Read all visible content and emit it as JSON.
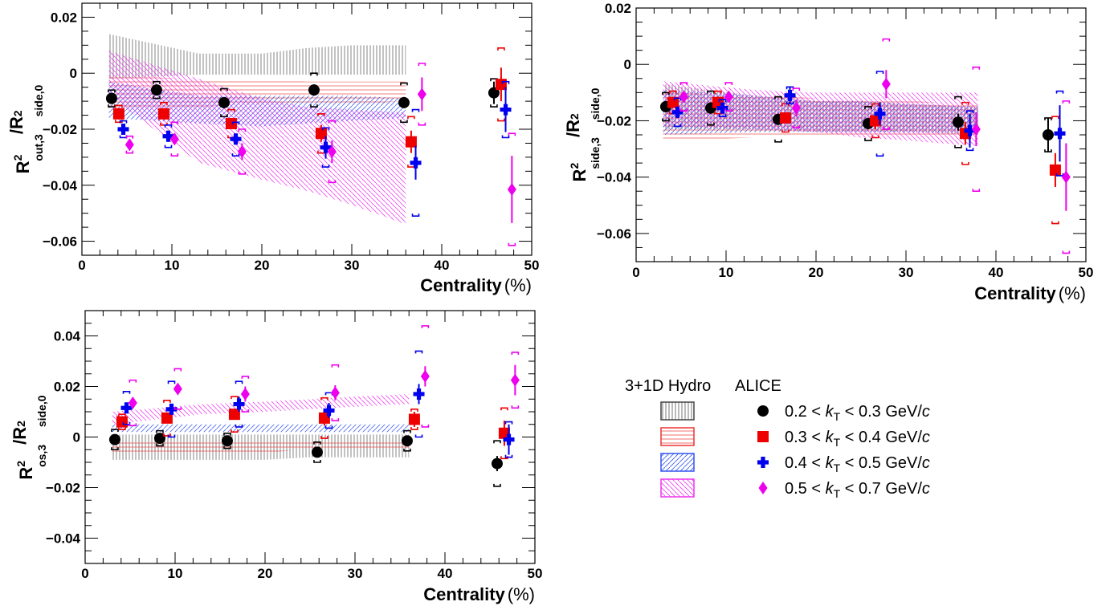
{
  "chart_data": [
    {
      "type": "scatter",
      "ylabel": "R²out,3/R²side,0",
      "xlabel": "Centrality (%)",
      "xlim": [
        0,
        50
      ],
      "ylim": [
        -0.065,
        0.025
      ],
      "xticks": [
        "0",
        "10",
        "20",
        "30",
        "40",
        "50"
      ],
      "yticks": [
        "0.02",
        "0",
        "−0.02",
        "−0.04",
        "−0.06"
      ],
      "series": [
        {
          "name": "0.2 < kT < 0.3 GeV/c",
          "x": [
            3.3,
            8.3,
            15.8,
            25.8,
            35.8,
            45.8
          ],
          "y": [
            -0.009,
            -0.006,
            -0.0105,
            -0.006,
            -0.0105,
            -0.007
          ],
          "err": [
            0.002,
            0.002,
            0.002,
            0.002,
            0.002,
            0.004
          ],
          "sys": [
            0.003,
            0.003,
            0.005,
            0.006,
            0.007,
            0.005
          ]
        },
        {
          "name": "0.3 < kT < 0.4 GeV/c",
          "x": [
            4.1,
            9.1,
            16.6,
            26.6,
            36.6,
            46.6
          ],
          "y": [
            -0.0145,
            -0.0145,
            -0.018,
            -0.0215,
            -0.0245,
            -0.004
          ],
          "err": [
            0.002,
            0.002,
            0.002,
            0.003,
            0.004,
            0.006
          ],
          "sys": [
            0.003,
            0.004,
            0.005,
            0.007,
            0.009,
            0.013
          ]
        },
        {
          "name": "0.4 < kT < 0.5 GeV/c",
          "x": [
            4.6,
            9.6,
            17.1,
            27.1,
            37.1,
            47.1
          ],
          "y": [
            -0.02,
            -0.0225,
            -0.0235,
            -0.0265,
            -0.032,
            -0.013
          ],
          "err": [
            0.002,
            0.002,
            0.002,
            0.004,
            0.006,
            0.008
          ],
          "sys": [
            0.003,
            0.004,
            0.006,
            0.007,
            0.019,
            0.01
          ]
        },
        {
          "name": "0.5 < kT < 0.7 GeV/c",
          "x": [
            5.3,
            10.3,
            17.8,
            27.8,
            37.8,
            47.8
          ],
          "y": [
            -0.0255,
            -0.0235,
            -0.028,
            -0.028,
            -0.0075,
            -0.0415
          ],
          "err": [
            0.002,
            0.002,
            0.003,
            0.004,
            0.006,
            0.012
          ],
          "sys": [
            0.003,
            0.006,
            0.008,
            0.011,
            0.011,
            0.02
          ]
        }
      ],
      "hydro": {
        "x": [
          3,
          13,
          20,
          25,
          30,
          36
        ],
        "bands": [
          {
            "low": [
              -0.002,
              -0.0005,
              -0.0005,
              -0.0005,
              -0.0005,
              -0.0005
            ],
            "high": [
              0.014,
              0.007,
              0.007,
              0.009,
              0.01,
              0.01
            ]
          },
          {
            "low": [
              -0.013,
              -0.012,
              -0.011,
              -0.011,
              -0.011,
              -0.01
            ],
            "high": [
              -0.001,
              -0.002,
              -0.002,
              -0.003,
              -0.003,
              -0.003
            ]
          },
          {
            "low": [
              -0.016,
              -0.018,
              -0.019,
              -0.018,
              -0.017,
              -0.016
            ],
            "high": [
              -0.003,
              -0.008,
              -0.008,
              -0.008,
              -0.008,
              -0.009
            ]
          },
          {
            "low": [
              -0.008,
              -0.032,
              -0.038,
              -0.042,
              -0.047,
              -0.054
            ],
            "high": [
              0.008,
              -0.002,
              -0.009,
              -0.012,
              -0.013,
              -0.014
            ]
          }
        ]
      }
    },
    {
      "type": "scatter",
      "ylabel": "R²side,3/R²side,0",
      "xlabel": "Centrality (%)",
      "xlim": [
        0,
        50
      ],
      "ylim": [
        -0.07,
        0.02
      ],
      "xticks": [
        "0",
        "10",
        "20",
        "30",
        "40",
        "50"
      ],
      "yticks": [
        "0.02",
        "0",
        "−0.02",
        "−0.04",
        "−0.06"
      ],
      "series": [
        {
          "name": "0.2 < kT < 0.3 GeV/c",
          "x": [
            3.3,
            8.3,
            15.8,
            25.8,
            35.8,
            45.8
          ],
          "y": [
            -0.015,
            -0.0155,
            -0.0195,
            -0.021,
            -0.0205,
            -0.025
          ],
          "err": [
            0.002,
            0.002,
            0.002,
            0.002,
            0.003,
            0.006
          ],
          "sys": [
            0.005,
            0.006,
            0.008,
            0.006,
            0.009,
            0.006
          ]
        },
        {
          "name": "0.3 < kT < 0.4 GeV/c",
          "x": [
            4.1,
            9.1,
            16.6,
            26.6,
            36.6,
            46.6
          ],
          "y": [
            -0.0135,
            -0.0135,
            -0.019,
            -0.02,
            -0.0245,
            -0.0375
          ],
          "err": [
            0.002,
            0.002,
            0.002,
            0.003,
            0.004,
            0.006
          ],
          "sys": [
            0.004,
            0.004,
            0.005,
            0.006,
            0.011,
            0.019
          ]
        },
        {
          "name": "0.4 < kT < 0.5 GeV/c",
          "x": [
            4.6,
            9.6,
            17.1,
            27.1,
            37.1,
            47.1
          ],
          "y": [
            -0.017,
            -0.0155,
            -0.011,
            -0.0175,
            -0.0235,
            -0.0245
          ],
          "err": [
            0.002,
            0.002,
            0.003,
            0.004,
            0.006,
            0.01
          ],
          "sys": [
            0.005,
            0.003,
            0.003,
            0.015,
            0.007,
            0.015
          ]
        },
        {
          "name": "0.5 < kT < 0.7 GeV/c",
          "x": [
            5.3,
            10.3,
            17.8,
            27.8,
            37.8,
            47.8
          ],
          "y": [
            -0.0115,
            -0.0115,
            -0.0155,
            -0.007,
            -0.023,
            -0.04
          ],
          "err": [
            0.002,
            0.002,
            0.003,
            0.005,
            0.006,
            0.012
          ],
          "sys": [
            0.005,
            0.005,
            0.007,
            0.016,
            0.022,
            0.027
          ]
        }
      ],
      "hydro": {
        "x": [
          3,
          13,
          20,
          25,
          30,
          38
        ],
        "bands": [
          {
            "low": [
              -0.023,
              -0.023,
              -0.024,
              -0.024,
              -0.024,
              -0.025
            ],
            "high": [
              -0.007,
              -0.011,
              -0.013,
              -0.013,
              -0.014,
              -0.015
            ]
          },
          {
            "low": [
              -0.027,
              -0.026,
              -0.025,
              -0.025,
              -0.025,
              -0.025
            ],
            "high": [
              -0.01,
              -0.011,
              -0.012,
              -0.013,
              -0.013,
              -0.014
            ]
          },
          {
            "low": [
              -0.025,
              -0.024,
              -0.024,
              -0.024,
              -0.024,
              -0.024
            ],
            "high": [
              -0.009,
              -0.011,
              -0.013,
              -0.013,
              -0.014,
              -0.015
            ]
          },
          {
            "low": [
              -0.022,
              -0.023,
              -0.024,
              -0.026,
              -0.027,
              -0.029
            ],
            "high": [
              -0.006,
              -0.009,
              -0.01,
              -0.01,
              -0.01,
              -0.01
            ]
          }
        ]
      }
    },
    {
      "type": "scatter",
      "ylabel": "R²os,3/R²side,0",
      "xlabel": "Centrality (%)",
      "xlim": [
        0,
        50
      ],
      "ylim": [
        -0.05,
        0.05
      ],
      "xticks": [
        "0",
        "10",
        "20",
        "30",
        "40",
        "50"
      ],
      "yticks": [
        "0.04",
        "0.02",
        "0",
        "−0.02",
        "−0.04"
      ],
      "series": [
        {
          "name": "0.2 < kT < 0.3 GeV/c",
          "x": [
            3.3,
            8.3,
            15.8,
            25.8,
            35.8,
            45.8
          ],
          "y": [
            -0.001,
            -0.0005,
            -0.0015,
            -0.006,
            -0.0015,
            -0.0105
          ],
          "err": [
            0.0015,
            0.0015,
            0.0015,
            0.002,
            0.002,
            0.003
          ],
          "sys": [
            0.004,
            0.003,
            0.003,
            0.004,
            0.004,
            0.009
          ]
        },
        {
          "name": "0.3 < kT < 0.4 GeV/c",
          "x": [
            4.1,
            9.1,
            16.6,
            26.6,
            36.6,
            46.6
          ],
          "y": [
            0.006,
            0.0075,
            0.009,
            0.0075,
            0.007,
            0.0015
          ],
          "err": [
            0.002,
            0.002,
            0.002,
            0.003,
            0.003,
            0.005
          ],
          "sys": [
            0.003,
            0.007,
            0.007,
            0.008,
            0.004,
            0.01
          ]
        },
        {
          "name": "0.4 < kT < 0.5 GeV/c",
          "x": [
            4.6,
            9.6,
            17.1,
            27.1,
            37.1,
            47.1
          ],
          "y": [
            0.0115,
            0.011,
            0.013,
            0.0105,
            0.017,
            -0.001
          ],
          "err": [
            0.002,
            0.002,
            0.003,
            0.003,
            0.004,
            0.006
          ],
          "sys": [
            0.0065,
            0.011,
            0.009,
            0.007,
            0.017,
            0.007
          ]
        },
        {
          "name": "0.5 < kT < 0.7 GeV/c",
          "x": [
            5.3,
            10.3,
            17.8,
            27.8,
            37.8,
            47.8
          ],
          "y": [
            0.0135,
            0.019,
            0.017,
            0.0175,
            0.024,
            0.0225
          ],
          "err": [
            0.002,
            0.002,
            0.003,
            0.003,
            0.004,
            0.006
          ],
          "sys": [
            0.009,
            0.008,
            0.007,
            0.011,
            0.02,
            0.011
          ]
        }
      ],
      "hydro": {
        "x": [
          3,
          13,
          20,
          25,
          30,
          36
        ],
        "bands": [
          {
            "low": [
              -0.009,
              -0.009,
              -0.009,
              -0.008,
              -0.008,
              -0.008
            ],
            "high": [
              0.001,
              0.001,
              0.001,
              0.001,
              0.001,
              0.001
            ]
          },
          {
            "low": [
              -0.006,
              -0.006,
              -0.006,
              -0.005,
              -0.005,
              -0.005
            ],
            "high": [
              -0.001,
              -0.001,
              -0.001,
              -0.001,
              -0.001,
              -0.001
            ]
          },
          {
            "low": [
              0.002,
              0.002,
              0.002,
              0.002,
              0.002,
              0.002
            ],
            "high": [
              0.005,
              0.005,
              0.005,
              0.005,
              0.005,
              0.005
            ]
          },
          {
            "low": [
              0.005,
              0.009,
              0.01,
              0.011,
              0.012,
              0.013
            ],
            "high": [
              0.01,
              0.013,
              0.014,
              0.015,
              0.016,
              0.017
            ]
          }
        ]
      }
    }
  ],
  "legend": {
    "hydro_title": "3+1D Hydro",
    "alice_title": "ALICE",
    "entries": [
      {
        "pre": "0.2 < ",
        "k": "k",
        "sub": "T",
        "post": " < 0.3 GeV/",
        "unit": "c"
      },
      {
        "pre": "0.3 < ",
        "k": "k",
        "sub": "T",
        "post": " < 0.4 GeV/",
        "unit": "c"
      },
      {
        "pre": "0.4 < ",
        "k": "k",
        "sub": "T",
        "post": " < 0.5 GeV/",
        "unit": "c"
      },
      {
        "pre": "0.5 < ",
        "k": "k",
        "sub": "T",
        "post": " < 0.7 GeV/",
        "unit": "c"
      }
    ]
  },
  "axis_text": {
    "xlabel_word": "Centrality",
    "xlabel_unit": "(%)",
    "ylabels": [
      {
        "main": "R",
        "sup1": "2",
        "sub1": "out,3",
        "slash": "/R",
        "sup2": "2",
        "sub2": "side,0"
      },
      {
        "main": "R",
        "sup1": "2",
        "sub1": "side,3",
        "slash": "/R",
        "sup2": "2",
        "sub2": "side,0"
      },
      {
        "main": "R",
        "sup1": "2",
        "sub1": "os,3",
        "slash": "/R",
        "sup2": "2",
        "sub2": "side,0"
      }
    ]
  },
  "colors": {
    "k1": "#000000",
    "k2": "#ee0000",
    "k3": "#0000ee",
    "k4": "#ee00ee"
  }
}
